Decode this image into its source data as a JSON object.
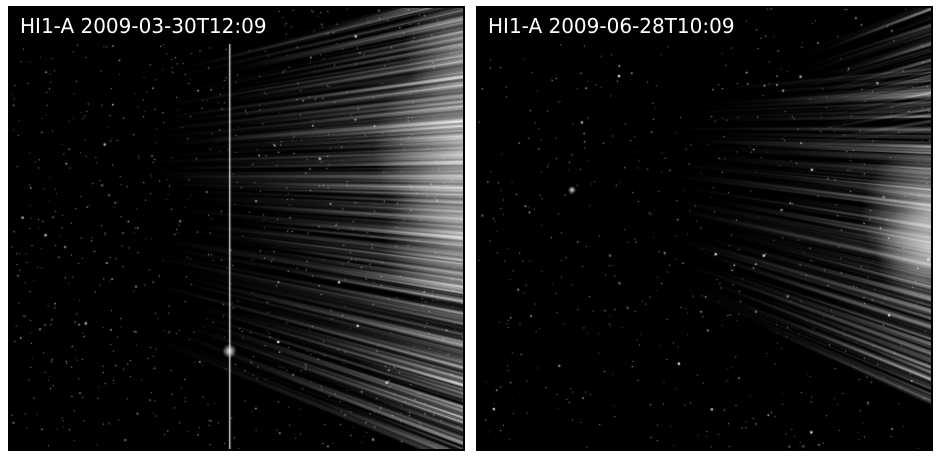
{
  "panels": [
    {
      "label": "HI1-A 2009-03-30T12:09",
      "has_vertical_line": true
    },
    {
      "label": "HI1-A 2009-06-28T10:09",
      "has_vertical_line": false
    }
  ],
  "colors": {
    "background": "#000000",
    "text": "#ffffff",
    "frame": "#000000",
    "streak": "#ffffff"
  }
}
